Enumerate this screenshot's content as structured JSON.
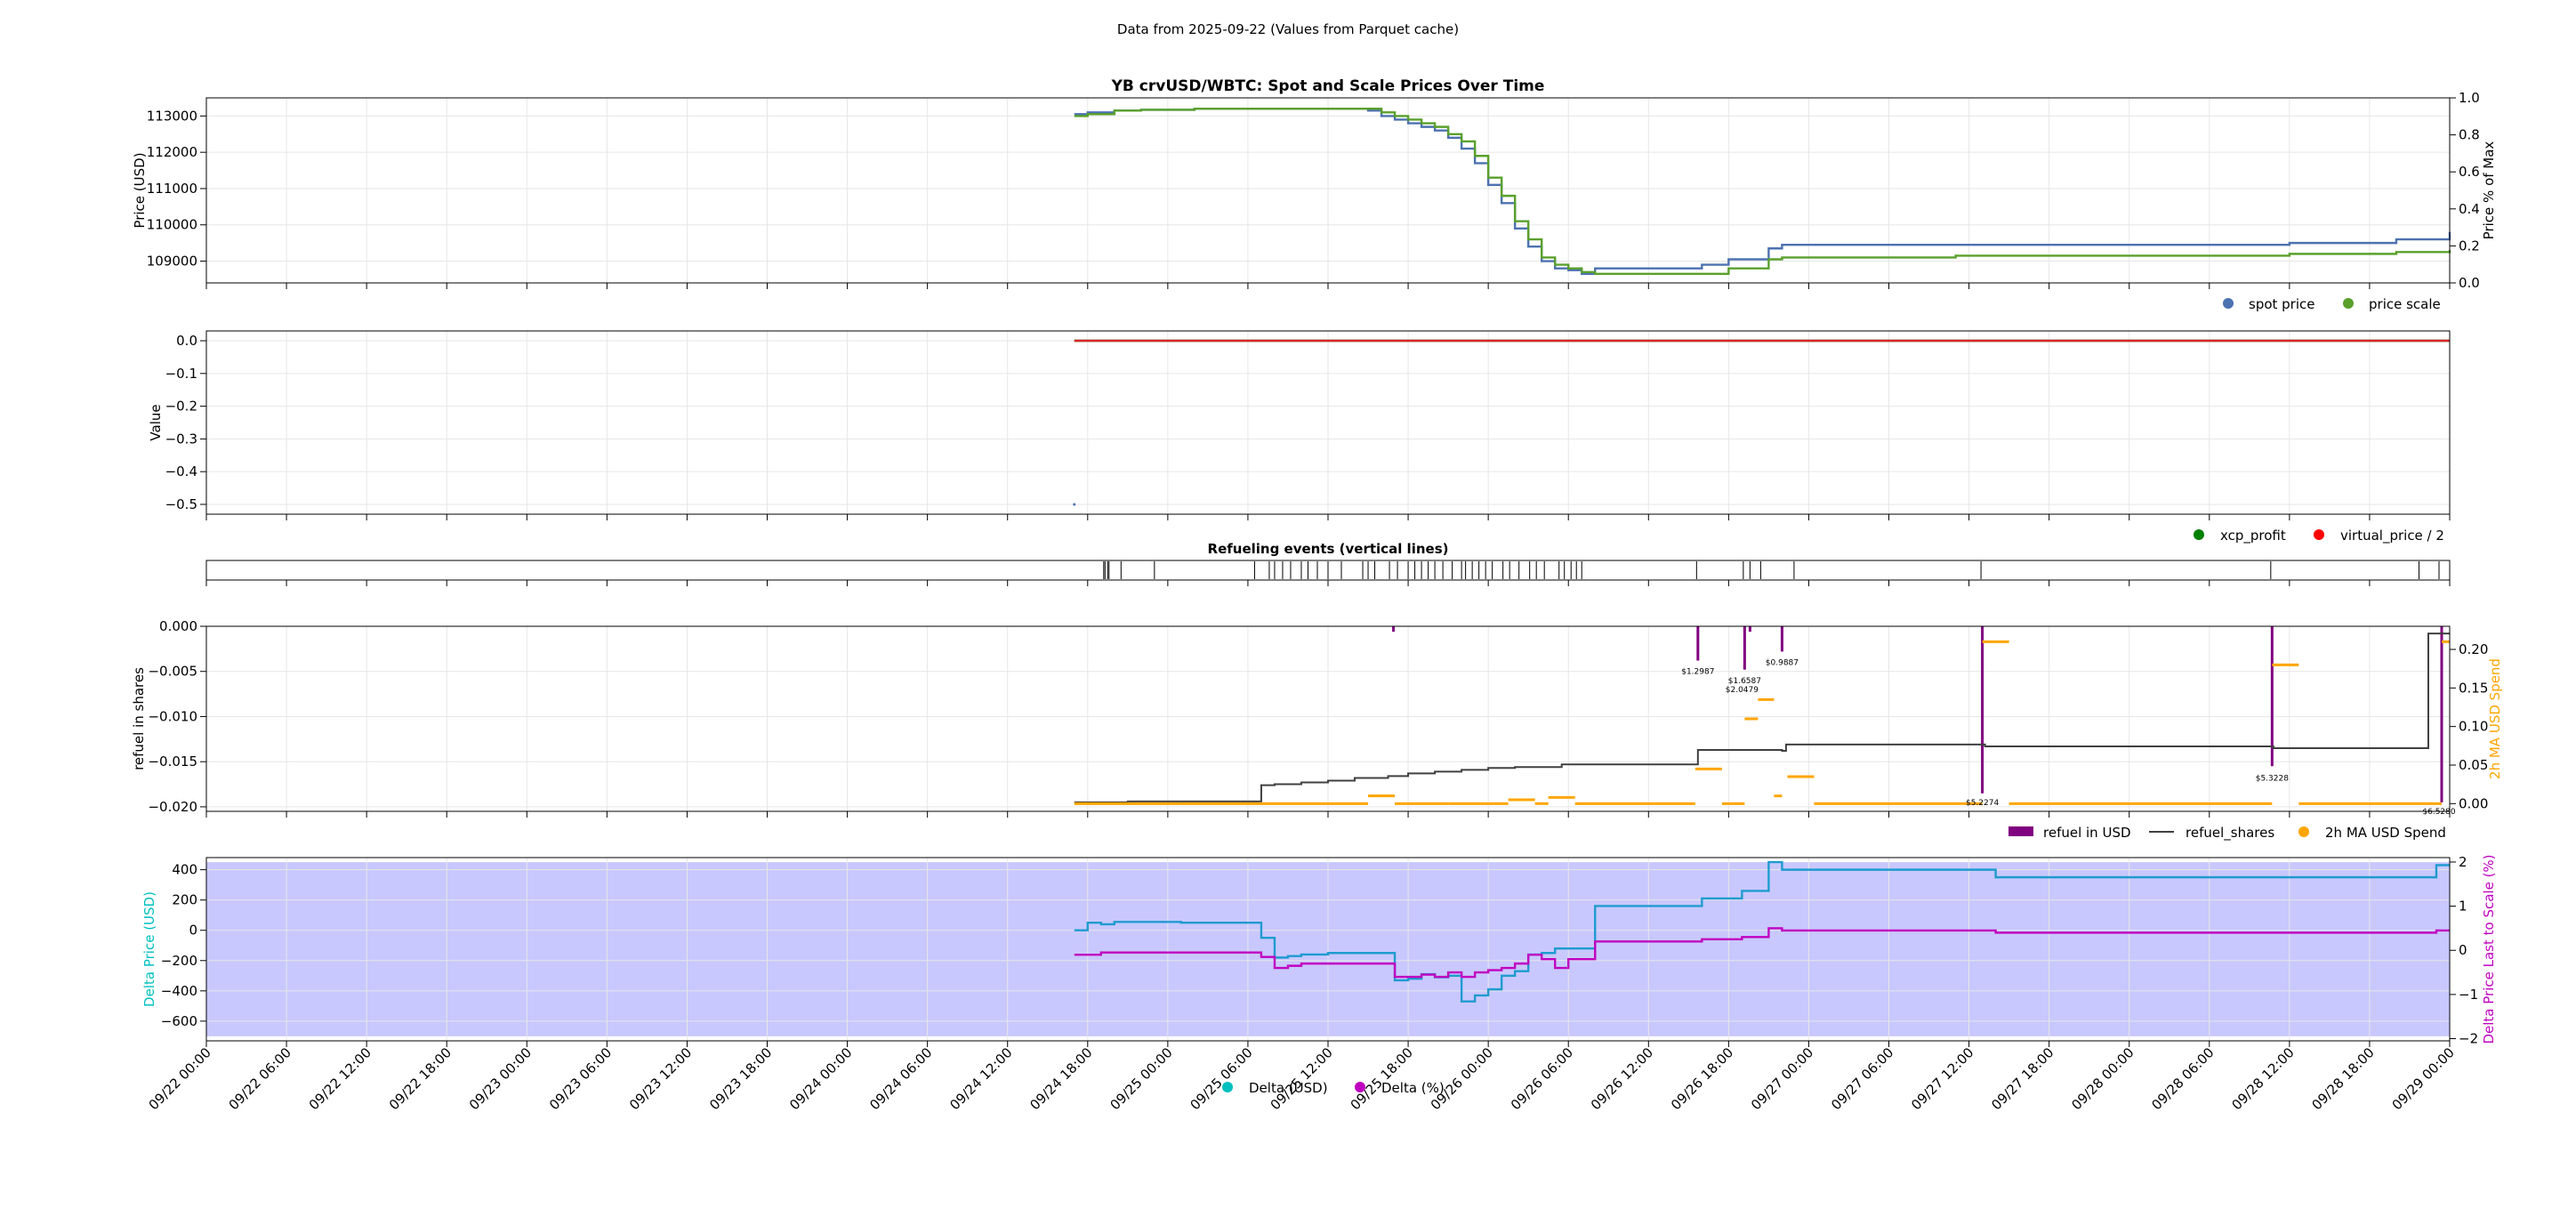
{
  "figure": {
    "suptitle": "Data from 2025-09-22 (Values from Parquet cache)"
  },
  "chart_data": [
    {
      "type": "line",
      "title": "YB crvUSD/WBTC: Spot and Scale Prices Over Time",
      "ylabel": "Price (USD)",
      "ylabel_right": "Price % of Max",
      "ylim": [
        108400,
        113500
      ],
      "ylim_right": [
        0,
        1
      ],
      "yticks": [
        109000,
        110000,
        111000,
        112000,
        113000
      ],
      "yticks_right": [
        0.0,
        0.2,
        0.4,
        0.6,
        0.8,
        1.0
      ],
      "grid": true,
      "legend_position": "below-right",
      "x_unit": "hours since 09/22 00:00",
      "series": [
        {
          "name": "spot price",
          "color": "#4c72b0",
          "x": [
            65,
            66,
            68,
            70,
            74,
            76,
            78,
            80,
            82,
            84,
            86,
            87,
            88,
            89,
            90,
            91,
            92,
            93,
            94,
            95,
            96,
            97,
            98,
            99,
            100,
            101,
            102,
            103,
            104,
            105,
            107,
            109,
            112,
            114,
            117,
            118,
            120,
            122,
            123,
            124,
            125,
            126,
            127,
            128,
            131,
            134,
            136,
            144,
            148,
            156,
            162,
            164,
            168
          ],
          "y": [
            113050,
            113100,
            113150,
            113170,
            113200,
            113200,
            113200,
            113200,
            113200,
            113200,
            113200,
            113150,
            113000,
            112900,
            112800,
            112700,
            112600,
            112400,
            112100,
            111700,
            111100,
            110600,
            109900,
            109400,
            109000,
            108800,
            108750,
            108650,
            108800,
            108800,
            108800,
            108800,
            108900,
            109050,
            109350,
            109450,
            109450,
            109450,
            109450,
            109450,
            109450,
            109450,
            109450,
            109450,
            109450,
            109450,
            109450,
            109450,
            109450,
            109500,
            109500,
            109600,
            109800
          ]
        },
        {
          "name": "price scale",
          "color": "#59a02c",
          "x": [
            65,
            66,
            68,
            70,
            74,
            76,
            78,
            80,
            82,
            84,
            86,
            87,
            88,
            89,
            90,
            91,
            92,
            93,
            94,
            95,
            96,
            97,
            98,
            99,
            100,
            101,
            102,
            103,
            104,
            105,
            107,
            109,
            112,
            114,
            117,
            118,
            120,
            122,
            123,
            124,
            125,
            126,
            127,
            128,
            131,
            134,
            136,
            144,
            148,
            156,
            162,
            164,
            168
          ],
          "y": [
            113000,
            113050,
            113150,
            113170,
            113200,
            113200,
            113200,
            113200,
            113200,
            113200,
            113200,
            113200,
            113100,
            113000,
            112900,
            112800,
            112700,
            112500,
            112300,
            111900,
            111300,
            110800,
            110100,
            109600,
            109100,
            108900,
            108800,
            108700,
            108650,
            108650,
            108650,
            108650,
            108650,
            108800,
            109050,
            109100,
            109100,
            109100,
            109100,
            109100,
            109100,
            109100,
            109100,
            109100,
            109150,
            109150,
            109150,
            109150,
            109150,
            109200,
            109200,
            109250,
            109300
          ]
        }
      ]
    },
    {
      "type": "line",
      "title": "",
      "ylabel": "Value",
      "ylim": [
        -0.53,
        0.03
      ],
      "yticks": [
        0.0,
        -0.1,
        -0.2,
        -0.3,
        -0.4,
        -0.5
      ],
      "grid": true,
      "legend_position": "below-right",
      "x_unit": "hours since 09/22 00:00",
      "series": [
        {
          "name": "xcp_profit",
          "color": "#008000",
          "x": [
            65,
            168
          ],
          "y": [
            0.0,
            0.0
          ]
        },
        {
          "name": "virtual_price / 2",
          "color": "#d62728",
          "x": [
            65,
            168
          ],
          "y": [
            0.0,
            0.0
          ]
        }
      ],
      "points": [
        {
          "x": 65,
          "y": -0.5
        }
      ]
    },
    {
      "type": "events",
      "title": "Refueling events (vertical lines)",
      "x_unit": "hours since 09/22 00:00",
      "x": [
        67.2,
        67.3,
        67.5,
        67.6,
        68.5,
        71,
        78.5,
        79.6,
        80,
        80.6,
        81.2,
        82,
        82.5,
        83.2,
        84,
        85,
        86.6,
        87,
        87.5,
        88.6,
        89.2,
        90,
        90.5,
        91,
        91.5,
        92,
        92.6,
        93.3,
        94,
        94.3,
        94.8,
        95.3,
        95.8,
        96.3,
        97.1,
        97.6,
        98.3,
        99.1,
        99.6,
        100.2,
        101.3,
        101.7,
        102.2,
        102.6,
        103,
        111.6,
        115.1,
        115.6,
        116.4,
        118.9,
        132.9,
        154.6,
        165.7,
        167.2
      ]
    },
    {
      "type": "line",
      "title": "",
      "ylabel": "refuel in shares",
      "ylabel_right": "2h MA USD Spend",
      "ylim": [
        -0.0205,
        0.0
      ],
      "ylim_right": [
        -0.01,
        0.23
      ],
      "yticks": [
        0.0,
        -0.005,
        -0.01,
        -0.015,
        -0.02
      ],
      "ytick_labels": [
        "0.000",
        "−0.005",
        "−0.010",
        "−0.015",
        "−0.020"
      ],
      "yticks_right": [
        0.0,
        0.05,
        0.1,
        0.15,
        0.2
      ],
      "ytick_labels_right": [
        "0.00",
        "0.05",
        "0.10",
        "0.15",
        "0.20"
      ],
      "grid": true,
      "legend_position": "below-right",
      "x_unit": "hours since 09/22 00:00",
      "series": [
        {
          "name": "refuel in USD",
          "color": "#800080",
          "bars": [
            {
              "x": 88.9,
              "y": -0.0006
            },
            {
              "x": 111.7,
              "y": -0.0038
            },
            {
              "x": 115.2,
              "y": -0.0048
            },
            {
              "x": 115.6,
              "y": -0.0006
            },
            {
              "x": 118.0,
              "y": -0.0028
            },
            {
              "x": 133.0,
              "y": -0.0185
            },
            {
              "x": 154.7,
              "y": -0.0155
            },
            {
              "x": 167.4,
              "y": -0.0195
            }
          ]
        },
        {
          "name": "refuel_shares",
          "color": "#404040",
          "x": [
            65,
            69,
            78.5,
            79,
            80,
            82,
            84,
            86,
            88.5,
            90,
            92,
            94,
            96,
            98,
            101,
            101.5,
            111.5,
            111.7,
            115.2,
            115.6,
            118.0,
            118.3,
            133.0,
            133.2,
            154.6,
            154.8,
            166.2,
            166.4,
            168
          ],
          "y": [
            -0.0195,
            -0.0194,
            -0.0194,
            -0.0176,
            -0.0175,
            -0.0173,
            -0.0171,
            -0.0168,
            -0.0166,
            -0.0163,
            -0.0161,
            -0.0159,
            -0.0157,
            -0.0156,
            -0.0156,
            -0.0153,
            -0.0153,
            -0.0137,
            -0.0137,
            -0.0137,
            -0.0138,
            -0.0131,
            -0.0131,
            -0.0133,
            -0.0133,
            -0.0135,
            -0.0135,
            -0.0008,
            -0.0008
          ]
        },
        {
          "name": "2h MA USD Spend",
          "color": "#ffa500",
          "segments": [
            [
              65,
              73,
              0.0
            ],
            [
              73,
              79,
              0.0
            ],
            [
              79,
              87,
              0.0
            ],
            [
              87,
              89,
              0.01
            ],
            [
              89,
              93,
              0.0
            ],
            [
              93,
              96,
              0.0
            ],
            [
              96,
              97.5,
              0.0
            ],
            [
              97.5,
              99.5,
              0.005
            ],
            [
              99.5,
              100.5,
              0.0
            ],
            [
              100.5,
              102.5,
              0.008
            ],
            [
              102.5,
              111.5,
              0.0
            ],
            [
              111.5,
              113.5,
              0.045
            ],
            [
              113.5,
              115.2,
              0.0
            ],
            [
              115.2,
              116.2,
              0.11
            ],
            [
              116.2,
              117.4,
              0.135
            ],
            [
              117.4,
              118.0,
              0.01
            ],
            [
              118.4,
              120.4,
              0.035
            ],
            [
              120.4,
              133.0,
              0.0
            ],
            [
              133.0,
              135.0,
              0.21
            ],
            [
              135.0,
              154.7,
              0.0
            ],
            [
              154.7,
              156.7,
              0.18
            ],
            [
              156.7,
              167.4,
              0.0
            ],
            [
              167.4,
              168,
              0.21
            ]
          ]
        }
      ],
      "annotations": [
        {
          "x": 111.7,
          "y": -0.0043,
          "text": "$1.2987"
        },
        {
          "x": 115.2,
          "y": -0.0053,
          "text": "$1.6587"
        },
        {
          "x": 115.0,
          "y": -0.0063,
          "text": "$2.0479"
        },
        {
          "x": 118.0,
          "y": -0.0033,
          "text": "$0.9887"
        },
        {
          "x": 133.0,
          "y": -0.0188,
          "text": "$5.2274"
        },
        {
          "x": 154.7,
          "y": -0.0161,
          "text": "$5.3228"
        },
        {
          "x": 167.2,
          "y": -0.0198,
          "text": "$6.5280"
        }
      ]
    },
    {
      "type": "line",
      "title": "",
      "ylabel": "Delta Price (USD)",
      "ylabel_right": "Delta Price Last to Scale (%)",
      "ylim": [
        -730,
        480
      ],
      "ylim_right": [
        -2.05,
        2.1
      ],
      "yticks": [
        400,
        200,
        0,
        -200,
        -400,
        -600
      ],
      "ytick_labels": [
        "400",
        "200",
        "0",
        "−200",
        "−400",
        "−600"
      ],
      "yticks_right": [
        2,
        1,
        0,
        -1,
        -2
      ],
      "ytick_labels_right": [
        "2",
        "1",
        "0",
        "−1",
        "−2"
      ],
      "shaded_band": [
        -700,
        450
      ],
      "grid": true,
      "legend_position": "bottom-center",
      "x_unit": "hours since 09/22 00:00",
      "series": [
        {
          "name": "Delta (USD)",
          "color": "#00bfbf",
          "x": [
            65,
            66,
            67,
            68,
            70,
            73,
            78,
            79,
            80,
            81,
            82,
            84,
            85,
            87,
            88,
            89,
            90,
            91,
            92,
            93,
            94,
            95,
            96,
            97,
            98,
            99,
            100,
            101,
            102,
            104,
            108,
            112,
            115,
            117,
            118,
            120,
            124,
            128,
            133,
            134,
            140,
            148,
            154,
            155,
            160,
            164,
            166,
            167,
            168
          ],
          "y": [
            0,
            50,
            40,
            55,
            55,
            50,
            50,
            -50,
            -180,
            -170,
            -160,
            -150,
            -150,
            -150,
            -150,
            -330,
            -320,
            -290,
            -310,
            -300,
            -470,
            -430,
            -390,
            -300,
            -270,
            -160,
            -150,
            -120,
            -120,
            160,
            160,
            210,
            260,
            450,
            400,
            400,
            400,
            400,
            400,
            350,
            350,
            350,
            350,
            350,
            350,
            350,
            350,
            430,
            430
          ]
        },
        {
          "name": "Delta (%)",
          "color": "#c000c0",
          "x": [
            65,
            66,
            67,
            68,
            70,
            73,
            78,
            79,
            80,
            81,
            82,
            84,
            85,
            87,
            88,
            89,
            90,
            91,
            92,
            93,
            94,
            95,
            96,
            97,
            98,
            99,
            100,
            101,
            102,
            104,
            108,
            112,
            115,
            117,
            118,
            120,
            124,
            128,
            133,
            134,
            140,
            148,
            154,
            155,
            160,
            164,
            166,
            167,
            168
          ],
          "y": [
            -0.1,
            -0.1,
            -0.05,
            -0.05,
            -0.05,
            -0.05,
            -0.05,
            -0.15,
            -0.4,
            -0.35,
            -0.3,
            -0.3,
            -0.3,
            -0.3,
            -0.3,
            -0.6,
            -0.6,
            -0.55,
            -0.6,
            -0.5,
            -0.6,
            -0.5,
            -0.45,
            -0.4,
            -0.3,
            -0.1,
            -0.2,
            -0.4,
            -0.2,
            0.2,
            0.2,
            0.25,
            0.3,
            0.5,
            0.45,
            0.45,
            0.45,
            0.45,
            0.45,
            0.4,
            0.4,
            0.4,
            0.4,
            0.4,
            0.4,
            0.4,
            0.4,
            0.45,
            0.45
          ]
        }
      ]
    }
  ],
  "x_axis": {
    "tick_labels": [
      "09/22 00:00",
      "09/22 06:00",
      "09/22 12:00",
      "09/22 18:00",
      "09/23 00:00",
      "09/23 06:00",
      "09/23 12:00",
      "09/23 18:00",
      "09/24 00:00",
      "09/24 06:00",
      "09/24 12:00",
      "09/24 18:00",
      "09/25 00:00",
      "09/25 06:00",
      "09/25 12:00",
      "09/25 18:00",
      "09/26 00:00",
      "09/26 06:00",
      "09/26 12:00",
      "09/26 18:00",
      "09/27 00:00",
      "09/27 06:00",
      "09/27 12:00",
      "09/27 18:00",
      "09/28 00:00",
      "09/28 06:00",
      "09/28 12:00",
      "09/28 18:00",
      "09/29 00:00"
    ],
    "range_hours": [
      0,
      168
    ]
  },
  "colors": {
    "grid": "#e6e6e6",
    "band": "#c8c8ff",
    "cyan_label": "#00bfbf",
    "magenta_label": "#c000c0",
    "orange_label": "#ffa500"
  }
}
